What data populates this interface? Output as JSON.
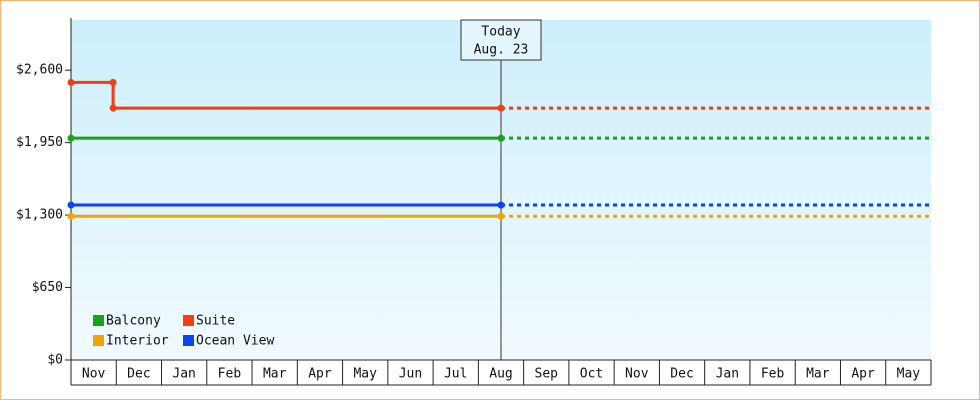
{
  "chart_data": {
    "type": "line",
    "categories": [
      "Nov",
      "Dec",
      "Jan",
      "Feb",
      "Mar",
      "Apr",
      "May",
      "Jun",
      "Jul",
      "Aug",
      "Sep",
      "Oct",
      "Nov",
      "Dec",
      "Jan",
      "Feb",
      "Mar",
      "Apr",
      "May"
    ],
    "xlim": [
      0,
      19
    ],
    "ylim": [
      0,
      3050
    ],
    "yticks": [
      {
        "value": 0,
        "label": "$0"
      },
      {
        "value": 650,
        "label": "$650"
      },
      {
        "value": 1300,
        "label": "$1,300"
      },
      {
        "value": 1950,
        "label": "$1,950"
      },
      {
        "value": 2600,
        "label": "$2,600"
      }
    ],
    "today": {
      "x": 9.5,
      "label": "Today",
      "date": "Aug. 23"
    },
    "legend": "bottom-left",
    "series": [
      {
        "name": "Balcony",
        "color": "#17a317",
        "x": [
          0,
          9.5
        ],
        "values": [
          1990,
          1990
        ]
      },
      {
        "name": "Suite",
        "color": "#f23d0f",
        "x": [
          0,
          0.93,
          0.93,
          9.5
        ],
        "values": [
          2490,
          2490,
          2260,
          2260
        ]
      },
      {
        "name": "Interior",
        "color": "#f5a300",
        "x": [
          0,
          9.5
        ],
        "values": [
          1290,
          1290
        ]
      },
      {
        "name": "Ocean View",
        "color": "#0a43f5",
        "x": [
          0,
          9.5
        ],
        "values": [
          1390,
          1390
        ]
      }
    ]
  }
}
